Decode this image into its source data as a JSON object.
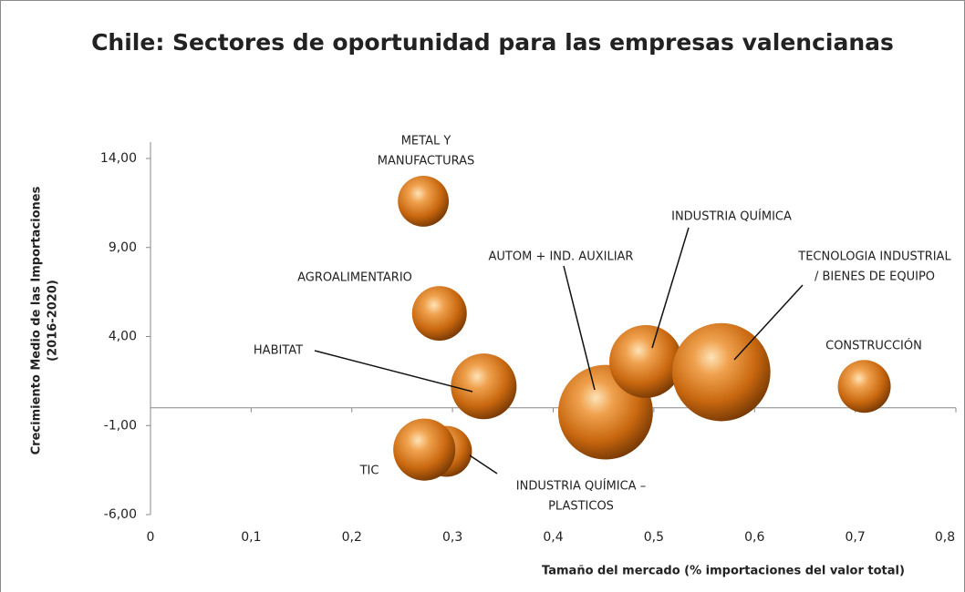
{
  "chart_data": {
    "type": "bubble",
    "title": "Chile: Sectores de oportunidad para las empresas valencianas",
    "xlabel": "Tamaño del mercado (% importaciones del valor total)",
    "ylabel": [
      "Crecimiento Medio de las Importaciones",
      "(2016-2020)"
    ],
    "labels": [
      [
        "METAL Y",
        "MANUFACTURAS"
      ],
      [
        "AGROALIMENTARIO"
      ],
      [
        "HABITAT"
      ],
      [
        "AUTOM + IND. AUXILIAR"
      ],
      [
        "INDUSTRIA QUÍMICA"
      ],
      [
        "TECNOLOGIA INDUSTRIAL",
        "/ BIENES DE EQUIPO"
      ],
      [
        "CONSTRUCCIÓN"
      ],
      [
        "INDUSTRIA QUÍMICA –",
        "PLASTICOS"
      ],
      [
        "TIC"
      ]
    ],
    "x": [
      0.271,
      0.287,
      0.331,
      0.452,
      0.492,
      0.567,
      0.709,
      0.294,
      0.272
    ],
    "values": [
      11.6,
      5.3,
      1.2,
      -0.25,
      2.6,
      2.0,
      1.2,
      -2.45,
      -2.35
    ],
    "sizes": [
      7.8,
      9,
      13,
      27,
      16,
      29,
      8.4,
      7.8,
      11.6
    ],
    "color": "#d9761c",
    "xlim": [
      0,
      0.8
    ],
    "xticks": [
      0,
      {
        "value": 0.1,
        "label": "0,1"
      },
      {
        "value": 0.2,
        "label": "0,2"
      },
      {
        "value": 0.3,
        "label": "0,3"
      },
      {
        "value": 0.4,
        "label": "0,4"
      },
      {
        "value": 0.5,
        "label": "0,5"
      },
      {
        "value": 0.6,
        "label": "0,6"
      },
      {
        "value": 0.7,
        "label": "0,7"
      },
      {
        "value": 0.8,
        "label": "0,8"
      }
    ],
    "ylim": [
      -6,
      14
    ],
    "yticks": [
      {
        "value": 14,
        "label": "14,00"
      },
      {
        "value": 9,
        "label": "9,00"
      },
      {
        "value": 4,
        "label": "4,00"
      },
      {
        "value": -1,
        "label": "-1,00"
      },
      {
        "value": -6,
        "label": "-6,00"
      }
    ]
  }
}
